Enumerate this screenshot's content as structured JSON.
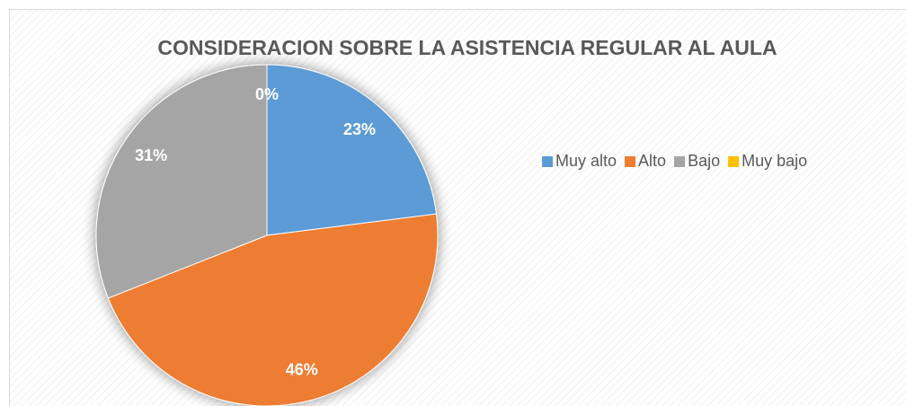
{
  "chart_data": {
    "type": "pie",
    "title": "CONSIDERACION SOBRE LA ASISTENCIA REGULAR AL AULA",
    "categories": [
      "Muy alto",
      "Alto",
      "Bajo",
      "Muy bajo"
    ],
    "values": [
      23,
      46,
      31,
      0
    ],
    "value_labels": [
      "23%",
      "46%",
      "31%",
      "0%"
    ],
    "colors": [
      "#5b9bd5",
      "#ed7d31",
      "#a5a5a5",
      "#ffc000"
    ],
    "legend": "right"
  }
}
